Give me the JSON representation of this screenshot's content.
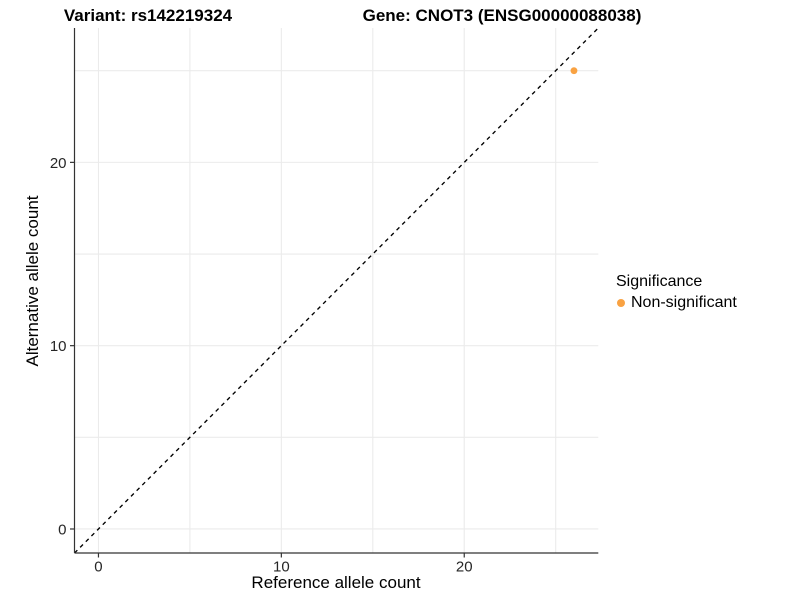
{
  "chart_data": {
    "type": "scatter",
    "title_left": "Variant: rs142219324",
    "title_right": "Gene: CNOT3 (ENSG00000088038)",
    "xlabel": "Reference allele count",
    "ylabel": "Alternative allele count",
    "x_ticks": [
      0,
      10,
      20
    ],
    "y_ticks": [
      0,
      10,
      20
    ],
    "grid_values": [
      0,
      5,
      10,
      15,
      20,
      25
    ],
    "xlim": [
      -1.31,
      27.33
    ],
    "ylim": [
      -1.31,
      27.33
    ],
    "grid": "on",
    "legend_position": "right",
    "points": [
      {
        "x": 26,
        "y": 25,
        "series": "Non-significant"
      }
    ],
    "identity_line": {
      "equation": "y = x",
      "style": "dashed",
      "color": "#000000"
    },
    "legend": {
      "title": "Significance",
      "entries": [
        {
          "label": "Non-significant",
          "color": "#F9A242"
        }
      ]
    },
    "colors": {
      "point": "#F9A242",
      "grid": "#EBEBEB",
      "axis": "#333333",
      "tick_text": "#262626"
    }
  }
}
